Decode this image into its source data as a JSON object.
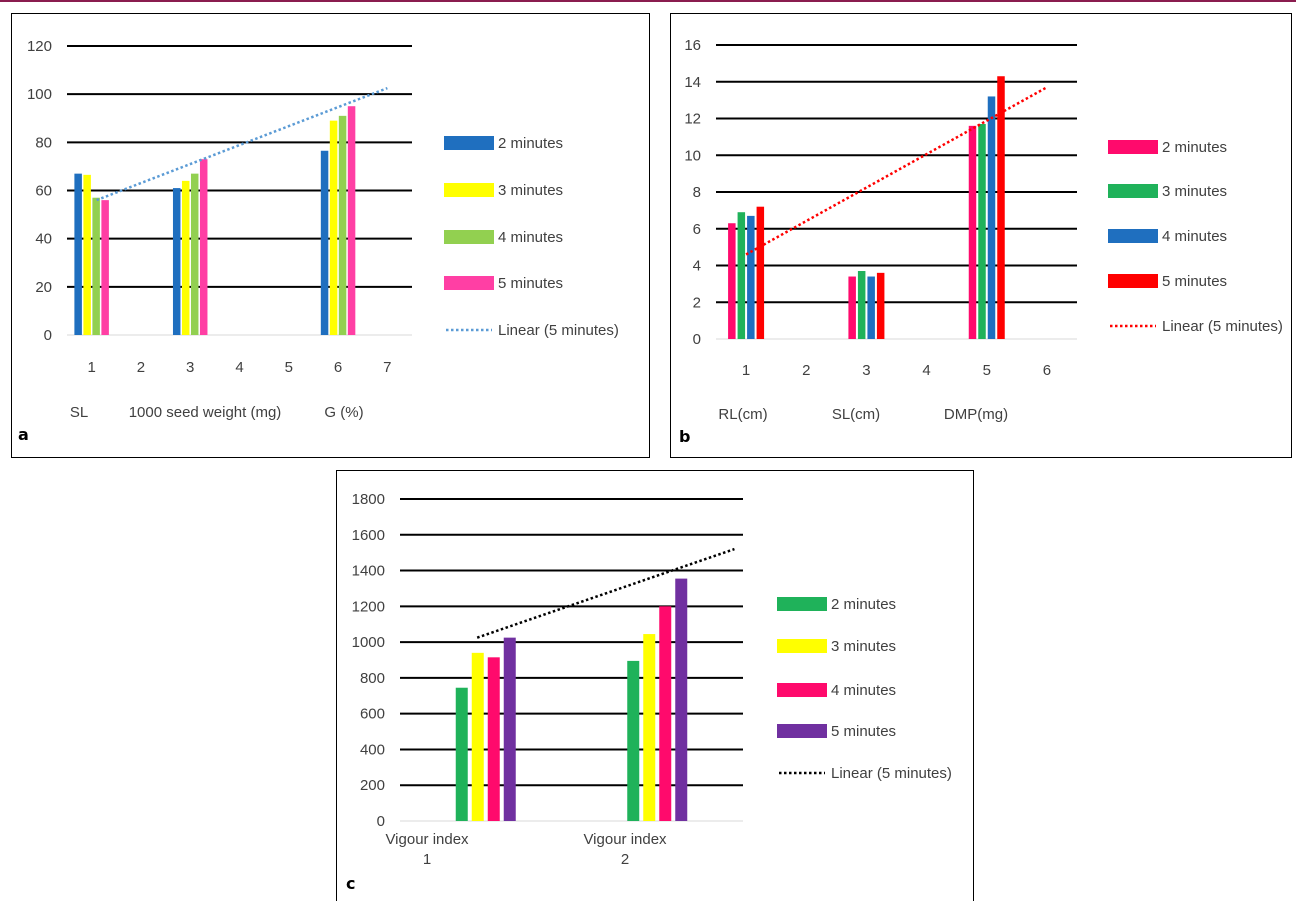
{
  "chart_data": [
    {
      "panel_label": "a",
      "type": "bar",
      "x": [
        1,
        3,
        6
      ],
      "xticks": [
        "1",
        "2",
        "3",
        "4",
        "5",
        "6",
        "7"
      ],
      "xlim": [
        0.5,
        7.5
      ],
      "category_labels": [
        "SL",
        "1000 seed weight (mg)",
        "G (%)"
      ],
      "ylim": [
        0,
        120
      ],
      "yticks": [
        0,
        20,
        40,
        60,
        80,
        100,
        120
      ],
      "grid": true,
      "legend_position": "right",
      "series": [
        {
          "name": "2 minutes",
          "color": "#1f6fbf",
          "values": [
            67,
            61,
            76.5
          ]
        },
        {
          "name": "3 minutes",
          "color": "#ffff00",
          "values": [
            66.5,
            64,
            89
          ]
        },
        {
          "name": "4 minutes",
          "color": "#92d050",
          "values": [
            57,
            67,
            91
          ]
        },
        {
          "name": "5 minutes",
          "color": "#ff3fa4",
          "values": [
            56,
            73,
            95
          ]
        }
      ],
      "trendline": {
        "name": "Linear (5 minutes)",
        "color": "#5b9bd5",
        "x": [
          1.1,
          7
        ],
        "y": [
          56,
          102.5
        ]
      }
    },
    {
      "panel_label": "b",
      "type": "bar",
      "x": [
        1,
        3,
        5
      ],
      "xticks": [
        "1",
        "2",
        "3",
        "4",
        "5",
        "6"
      ],
      "xlim": [
        0.5,
        6.5
      ],
      "category_labels": [
        "RL(cm)",
        "SL(cm)",
        "DMP(mg)"
      ],
      "ylim": [
        0,
        16
      ],
      "yticks": [
        0,
        2,
        4,
        6,
        8,
        10,
        12,
        14,
        16
      ],
      "grid": true,
      "legend_position": "right",
      "series": [
        {
          "name": "2 minutes",
          "color": "#ff0a6c",
          "values": [
            6.3,
            3.4,
            11.6
          ]
        },
        {
          "name": "3 minutes",
          "color": "#1fb25a",
          "values": [
            6.9,
            3.7,
            11.7
          ]
        },
        {
          "name": "4 minutes",
          "color": "#1f6fbf",
          "values": [
            6.7,
            3.4,
            13.2
          ]
        },
        {
          "name": "5 minutes",
          "color": "#ff0000",
          "values": [
            7.2,
            3.6,
            14.3
          ]
        }
      ],
      "trendline": {
        "name": "Linear (5 minutes)",
        "color": "#ff0000",
        "x": [
          1,
          6
        ],
        "y": [
          4.6,
          13.7
        ]
      }
    },
    {
      "panel_label": "c",
      "type": "bar",
      "categories": [
        "Vigour index\n1",
        "Vigour index\n2"
      ],
      "xlim": [
        0,
        2
      ],
      "ylim": [
        0,
        1800
      ],
      "yticks": [
        0,
        200,
        400,
        600,
        800,
        1000,
        1200,
        1400,
        1600,
        1800
      ],
      "grid": true,
      "legend_position": "right",
      "series": [
        {
          "name": "2 minutes",
          "color": "#1fb25a",
          "values": [
            745,
            895
          ]
        },
        {
          "name": "3 minutes",
          "color": "#ffff00",
          "values": [
            940,
            1045
          ]
        },
        {
          "name": "4 minutes",
          "color": "#ff0a6c",
          "values": [
            915,
            1200
          ]
        },
        {
          "name": "5 minutes",
          "color": "#7030a0",
          "values": [
            1025,
            1355
          ]
        }
      ],
      "trendline": {
        "name": "Linear (5 minutes)",
        "color": "#000000",
        "x": [
          0.45,
          1.95
        ],
        "y": [
          1025,
          1520
        ]
      }
    }
  ]
}
